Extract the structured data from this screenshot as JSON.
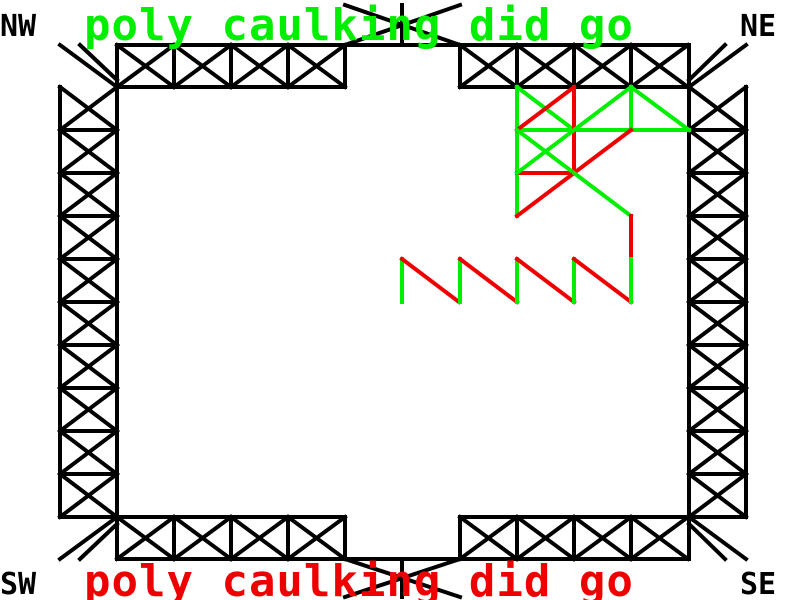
{
  "corners": {
    "nw": "NW",
    "ne": "NE",
    "sw": "SW",
    "se": "SE"
  },
  "top_message": "poly caulking did go",
  "bottom_message": "poly caulking did go",
  "colors": {
    "background": "#ffffff",
    "truss": "#000000",
    "green": "#00ee00",
    "red": "#ee0000"
  }
}
